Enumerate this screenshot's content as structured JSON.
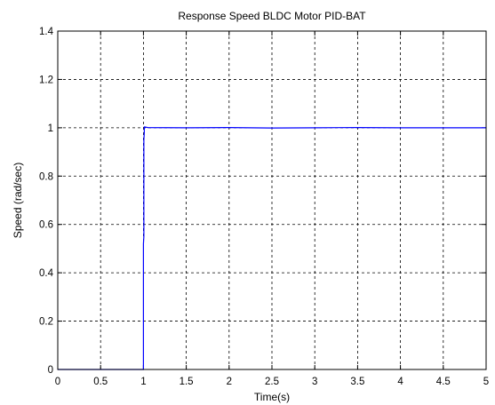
{
  "chart_data": {
    "type": "line",
    "title": "Response Speed BLDC Motor PID-BAT",
    "xlabel": "Time(s)",
    "ylabel": "Speed (rad/sec)",
    "xlim": [
      0,
      5
    ],
    "ylim": [
      0,
      1.4
    ],
    "xticks": [
      0,
      0.5,
      1,
      1.5,
      2,
      2.5,
      3,
      3.5,
      4,
      4.5,
      5
    ],
    "xtick_labels": [
      "0",
      "0.5",
      "1",
      "1.5",
      "2",
      "2.5",
      "3",
      "3.5",
      "4",
      "4.5",
      "5"
    ],
    "yticks": [
      0,
      0.2,
      0.4,
      0.6,
      0.8,
      1,
      1.2,
      1.4
    ],
    "ytick_labels": [
      "0",
      "0.2",
      "0.4",
      "0.6",
      "0.8",
      "1",
      "1.2",
      "1.4"
    ],
    "grid": true,
    "series": [
      {
        "color": "#0000ff",
        "x": [
          0,
          0.99,
          1.0,
          1.0,
          1.005,
          1.005,
          1.01,
          1.01,
          1.015,
          1.02,
          1.05,
          1.5,
          2,
          2.5,
          3,
          3.5,
          4,
          4.5,
          5
        ],
        "y": [
          0,
          0,
          0,
          0.52,
          0.55,
          0.95,
          0.98,
          1.005,
          1.0,
          1.003,
          1.001,
          1.0,
          1.001,
          0.999,
          1.0,
          1.001,
          1.0,
          1.0,
          1.0
        ]
      }
    ]
  }
}
